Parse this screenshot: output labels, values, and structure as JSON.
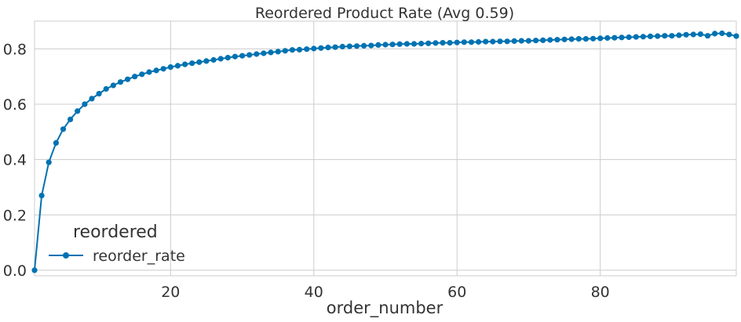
{
  "chart_data": {
    "type": "line",
    "title": "Reordered Product Rate (Avg 0.59)",
    "xlabel": "order_number",
    "ylabel": "",
    "xlim": [
      1,
      99
    ],
    "ylim": [
      -0.02,
      0.9
    ],
    "xticks": [
      20,
      40,
      60,
      80
    ],
    "yticks": [
      0.0,
      0.2,
      0.4,
      0.6,
      0.8
    ],
    "grid": true,
    "legend": {
      "title": "reordered",
      "placement": "lower-left"
    },
    "series": [
      {
        "name": "reorder_rate",
        "color": "#0072b2",
        "marker": "circle",
        "x": [
          1,
          2,
          3,
          4,
          5,
          6,
          7,
          8,
          9,
          10,
          11,
          12,
          13,
          14,
          15,
          16,
          17,
          18,
          19,
          20,
          21,
          22,
          23,
          24,
          25,
          26,
          27,
          28,
          29,
          30,
          31,
          32,
          33,
          34,
          35,
          36,
          37,
          38,
          39,
          40,
          41,
          42,
          43,
          44,
          45,
          46,
          47,
          48,
          49,
          50,
          51,
          52,
          53,
          54,
          55,
          56,
          57,
          58,
          59,
          60,
          61,
          62,
          63,
          64,
          65,
          66,
          67,
          68,
          69,
          70,
          71,
          72,
          73,
          74,
          75,
          76,
          77,
          78,
          79,
          80,
          81,
          82,
          83,
          84,
          85,
          86,
          87,
          88,
          89,
          90,
          91,
          92,
          93,
          94,
          95,
          96,
          97,
          98,
          99
        ],
        "values": [
          0.0,
          0.27,
          0.39,
          0.46,
          0.51,
          0.545,
          0.575,
          0.6,
          0.62,
          0.638,
          0.655,
          0.668,
          0.68,
          0.69,
          0.7,
          0.708,
          0.716,
          0.722,
          0.728,
          0.734,
          0.739,
          0.744,
          0.748,
          0.752,
          0.756,
          0.76,
          0.764,
          0.768,
          0.772,
          0.775,
          0.778,
          0.781,
          0.784,
          0.787,
          0.79,
          0.793,
          0.796,
          0.797,
          0.799,
          0.801,
          0.803,
          0.805,
          0.806,
          0.808,
          0.809,
          0.81,
          0.811,
          0.812,
          0.814,
          0.815,
          0.816,
          0.817,
          0.818,
          0.818,
          0.819,
          0.82,
          0.821,
          0.822,
          0.822,
          0.823,
          0.824,
          0.824,
          0.825,
          0.826,
          0.826,
          0.827,
          0.827,
          0.828,
          0.829,
          0.829,
          0.83,
          0.831,
          0.832,
          0.833,
          0.834,
          0.835,
          0.836,
          0.836,
          0.837,
          0.838,
          0.839,
          0.84,
          0.841,
          0.842,
          0.843,
          0.844,
          0.845,
          0.846,
          0.847,
          0.847,
          0.849,
          0.851,
          0.852,
          0.853,
          0.847,
          0.855,
          0.856,
          0.852,
          0.846
        ]
      }
    ]
  }
}
